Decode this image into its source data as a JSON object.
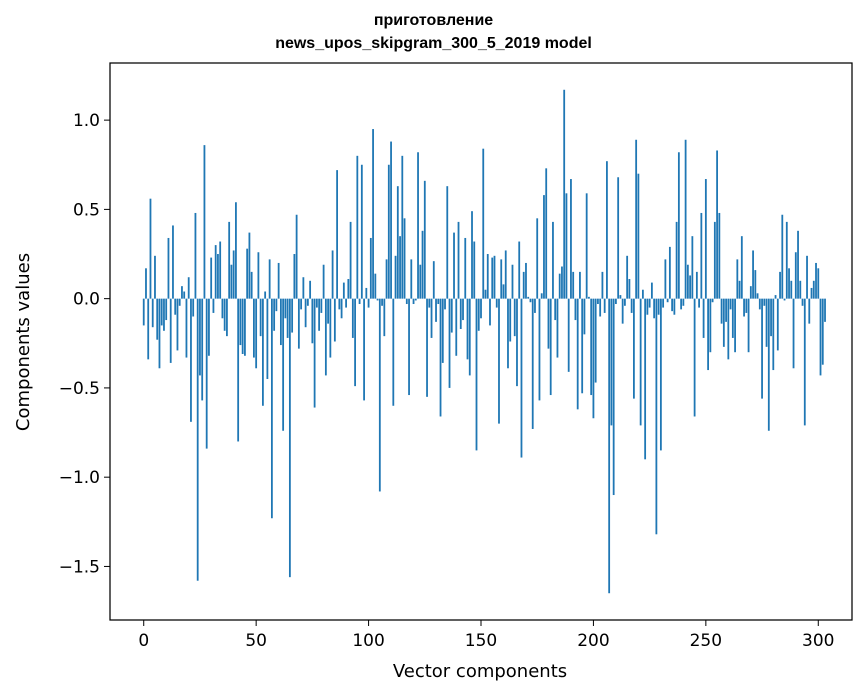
{
  "chart_data": {
    "type": "bar",
    "title_line1": "приготовление",
    "title_line2": "news_upos_skipgram_300_5_2019 model",
    "xlabel": "Vector components",
    "ylabel": "Components values",
    "xlim": [
      -15,
      315
    ],
    "ylim": [
      -1.8,
      1.32
    ],
    "xticks": [
      0,
      50,
      100,
      150,
      200,
      250,
      300
    ],
    "xtick_labels": [
      "0",
      "50",
      "100",
      "150",
      "200",
      "250",
      "300"
    ],
    "yticks": [
      -1.5,
      -1.0,
      -0.5,
      0.0,
      0.5,
      1.0
    ],
    "ytick_labels": [
      "−1.5",
      "−1.0",
      "−0.5",
      "0.0",
      "0.5",
      "1.0"
    ],
    "grid": false,
    "bar_color": "#1f77b4",
    "values": [
      -0.15,
      0.17,
      -0.34,
      0.56,
      -0.16,
      0.24,
      -0.23,
      -0.39,
      -0.15,
      -0.18,
      -0.12,
      0.34,
      -0.36,
      0.41,
      -0.09,
      -0.29,
      -0.04,
      0.07,
      0.04,
      -0.33,
      0.12,
      -0.69,
      -0.1,
      0.48,
      -1.58,
      -0.43,
      -0.57,
      0.86,
      -0.84,
      -0.32,
      0.23,
      -0.08,
      0.3,
      0.25,
      0.32,
      -0.11,
      -0.18,
      -0.21,
      0.43,
      0.19,
      0.27,
      0.54,
      -0.8,
      -0.26,
      -0.31,
      -0.32,
      0.28,
      0.37,
      0.15,
      -0.33,
      -0.39,
      0.26,
      -0.21,
      -0.6,
      0.04,
      -0.45,
      0.22,
      -1.23,
      -0.18,
      -0.07,
      0.2,
      -0.26,
      -0.74,
      -0.11,
      -0.22,
      -1.56,
      -0.19,
      0.25,
      0.47,
      -0.28,
      -0.06,
      0.12,
      -0.16,
      -0.04,
      0.1,
      -0.25,
      -0.61,
      -0.05,
      -0.18,
      -0.08,
      0.19,
      -0.43,
      -0.14,
      -0.33,
      0.27,
      -0.24,
      0.72,
      -0.06,
      -0.11,
      0.09,
      -0.05,
      0.11,
      0.43,
      -0.22,
      -0.49,
      0.8,
      -0.03,
      0.75,
      -0.57,
      0.06,
      -0.05,
      0.34,
      0.95,
      0.14,
      -0.01,
      -1.08,
      -0.04,
      -0.21,
      0.22,
      0.75,
      0.88,
      -0.6,
      0.24,
      0.63,
      0.35,
      0.8,
      0.45,
      -0.03,
      -0.54,
      0.22,
      -0.03,
      -0.01,
      0.82,
      0.19,
      0.38,
      0.66,
      -0.55,
      -0.05,
      -0.22,
      0.21,
      -0.13,
      -0.03,
      -0.66,
      -0.36,
      -0.06,
      0.63,
      -0.5,
      -0.19,
      0.37,
      -0.32,
      0.43,
      -0.17,
      -0.12,
      0.34,
      -0.34,
      -0.43,
      0.49,
      0.32,
      -0.85,
      -0.18,
      -0.11,
      0.84,
      0.05,
      0.25,
      -0.15,
      0.23,
      0.24,
      -0.05,
      -0.7,
      0.22,
      0.08,
      0.27,
      -0.39,
      -0.24,
      0.19,
      -0.21,
      -0.49,
      0.32,
      -0.89,
      0.15,
      0.2,
      0.01,
      -0.02,
      -0.73,
      -0.08,
      0.45,
      -0.57,
      0.03,
      0.58,
      0.73,
      -0.28,
      -0.54,
      0.43,
      -0.12,
      -0.33,
      0.14,
      0.18,
      1.17,
      0.59,
      -0.41,
      0.67,
      0.15,
      -0.12,
      -0.62,
      0.15,
      -0.53,
      -0.2,
      0.59,
      0.01,
      -0.54,
      -0.67,
      -0.47,
      -0.03,
      -0.1,
      0.15,
      -0.08,
      0.77,
      -1.65,
      -0.71,
      -1.1,
      -0.03,
      0.68,
      0.02,
      -0.14,
      -0.04,
      0.24,
      0.11,
      -0.08,
      -0.56,
      0.89,
      0.7,
      -0.71,
      0.05,
      -0.9,
      -0.09,
      -0.05,
      0.09,
      -0.11,
      -1.32,
      -0.09,
      -0.85,
      -0.05,
      0.22,
      -0.02,
      0.29,
      -0.07,
      -0.09,
      0.43,
      0.82,
      -0.06,
      -0.04,
      0.89,
      0.19,
      0.13,
      0.35,
      -0.66,
      0.15,
      -0.05,
      0.48,
      -0.22,
      0.67,
      -0.4,
      -0.3,
      -0.02,
      0.43,
      0.83,
      0.48,
      -0.14,
      -0.27,
      -0.13,
      -0.34,
      -0.06,
      -0.22,
      -0.3,
      0.22,
      0.1,
      0.35,
      -0.1,
      -0.08,
      -0.3,
      0.07,
      0.27,
      0.16,
      0.03,
      -0.06,
      -0.56,
      -0.04,
      -0.27,
      -0.74,
      -0.21,
      -0.4,
      0.02,
      -0.29,
      0.15,
      0.47,
      -0.01,
      0.43,
      0.17,
      0.1,
      -0.39,
      0.26,
      0.38,
      0.1,
      -0.04,
      -0.71,
      0.24,
      -0.14,
      0.06,
      0.1,
      0.2,
      0.17,
      -0.43,
      -0.37,
      -0.13
    ]
  }
}
